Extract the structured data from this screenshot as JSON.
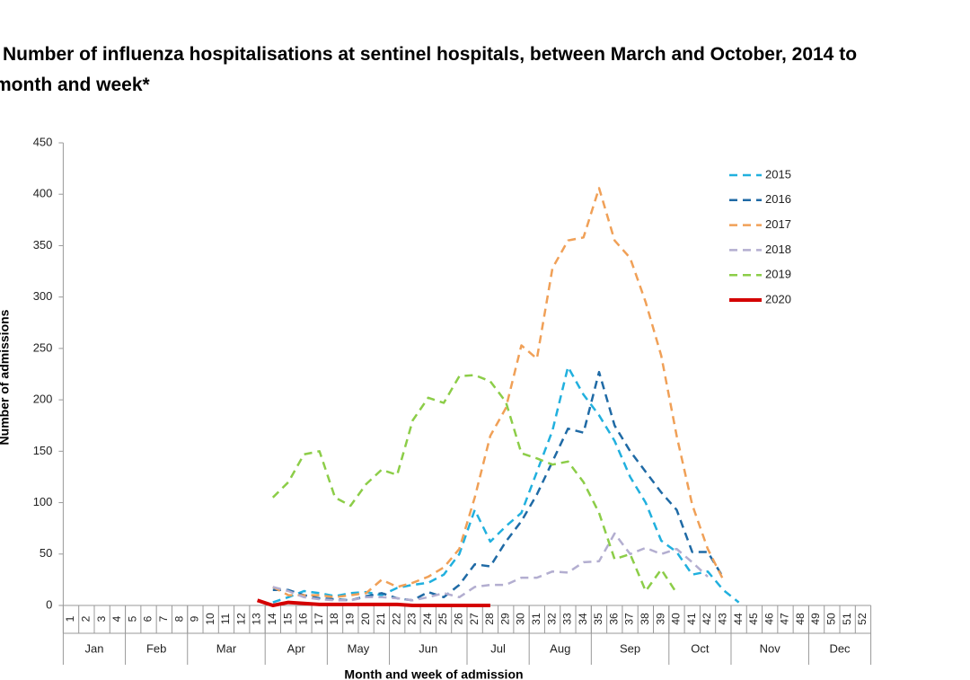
{
  "chart_data": {
    "type": "line",
    "title": "Number of influenza hospitalisations at sentinel hospitals, between March and October, 2014 to",
    "subtitle": "month and week*",
    "y_label": "Number of admissions",
    "x_label": "Month and week of admission",
    "categories": [
      "1",
      "2",
      "3",
      "4",
      "5",
      "6",
      "7",
      "8",
      "9",
      "10",
      "11",
      "12",
      "13",
      "14",
      "15",
      "16",
      "17",
      "18",
      "19",
      "20",
      "21",
      "22",
      "23",
      "24",
      "25",
      "26",
      "27",
      "28",
      "29",
      "30",
      "31",
      "32",
      "33",
      "34",
      "35",
      "36",
      "37",
      "38",
      "39",
      "40",
      "41",
      "42",
      "43",
      "44",
      "45",
      "46",
      "47",
      "48",
      "49",
      "50",
      "51",
      "52"
    ],
    "category_groups": [
      {
        "label": "Jan",
        "span": 4
      },
      {
        "label": "Feb",
        "span": 4
      },
      {
        "label": "Mar",
        "span": 5
      },
      {
        "label": "Apr",
        "span": 4
      },
      {
        "label": "May",
        "span": 4
      },
      {
        "label": "Jun",
        "span": 5
      },
      {
        "label": "Jul",
        "span": 4
      },
      {
        "label": "Aug",
        "span": 4
      },
      {
        "label": "Sep",
        "span": 5
      },
      {
        "label": "Oct",
        "span": 4
      },
      {
        "label": "Nov",
        "span": 5
      },
      {
        "label": "Dec",
        "span": 4
      }
    ],
    "ylim": [
      0,
      450
    ],
    "yticks": [
      0,
      50,
      100,
      150,
      200,
      250,
      300,
      350,
      400,
      450
    ],
    "grid": false,
    "legend": "right",
    "series": [
      {
        "name": "2015",
        "color": "#21b0de",
        "dashed": true,
        "values": [
          null,
          null,
          null,
          null,
          null,
          null,
          null,
          null,
          null,
          null,
          null,
          null,
          null,
          3,
          8,
          14,
          12,
          9,
          12,
          13,
          10,
          17,
          20,
          22,
          30,
          50,
          93,
          62,
          77,
          90,
          130,
          170,
          232,
          205,
          185,
          160,
          125,
          100,
          63,
          52,
          30,
          33,
          15,
          3,
          null,
          null,
          null,
          null,
          null,
          null,
          null,
          null
        ]
      },
      {
        "name": "2016",
        "color": "#1f6aa5",
        "dashed": true,
        "values": [
          null,
          null,
          null,
          null,
          null,
          null,
          null,
          null,
          null,
          null,
          null,
          null,
          null,
          15,
          15,
          10,
          7,
          6,
          5,
          9,
          12,
          7,
          5,
          13,
          8,
          20,
          40,
          38,
          62,
          82,
          108,
          140,
          172,
          168,
          227,
          175,
          150,
          130,
          110,
          93,
          52,
          52,
          27,
          null,
          null,
          null,
          null,
          null,
          null,
          null,
          null,
          null
        ]
      },
      {
        "name": "2017",
        "color": "#f0a057",
        "dashed": true,
        "values": [
          null,
          null,
          null,
          null,
          null,
          null,
          null,
          null,
          null,
          null,
          null,
          null,
          null,
          18,
          10,
          10,
          10,
          8,
          10,
          12,
          25,
          18,
          22,
          28,
          37,
          55,
          105,
          165,
          192,
          253,
          240,
          328,
          355,
          358,
          406,
          355,
          338,
          295,
          243,
          165,
          98,
          55,
          25,
          null,
          null,
          null,
          null,
          null,
          null,
          null,
          null,
          null
        ]
      },
      {
        "name": "2018",
        "color": "#b3aed0",
        "dashed": true,
        "values": [
          null,
          null,
          null,
          null,
          null,
          null,
          null,
          null,
          null,
          null,
          null,
          null,
          null,
          18,
          14,
          8,
          6,
          5,
          5,
          8,
          8,
          7,
          5,
          8,
          12,
          8,
          18,
          20,
          20,
          27,
          27,
          33,
          32,
          42,
          43,
          70,
          50,
          56,
          50,
          55,
          42,
          28,
          null,
          null,
          null,
          null,
          null,
          null,
          null,
          null,
          null,
          null
        ]
      },
      {
        "name": "2019",
        "color": "#8ccd48",
        "dashed": true,
        "values": [
          null,
          null,
          null,
          null,
          null,
          null,
          null,
          null,
          null,
          null,
          null,
          null,
          null,
          105,
          120,
          147,
          150,
          105,
          97,
          118,
          132,
          127,
          180,
          202,
          197,
          223,
          224,
          218,
          198,
          148,
          143,
          137,
          140,
          120,
          90,
          45,
          50,
          14,
          35,
          12,
          null,
          null,
          null,
          null,
          null,
          null,
          null,
          null,
          null,
          null,
          null,
          null
        ]
      },
      {
        "name": "2020",
        "color": "#d40000",
        "dashed": false,
        "values": [
          null,
          null,
          null,
          null,
          null,
          null,
          null,
          null,
          null,
          null,
          null,
          null,
          5,
          0,
          3,
          2,
          1,
          1,
          1,
          1,
          1,
          1,
          0,
          0,
          0,
          0,
          0,
          0,
          null,
          null,
          null,
          null,
          null,
          null,
          null,
          null,
          null,
          null,
          null,
          null,
          null,
          null,
          null,
          null,
          null,
          null,
          null,
          null,
          null,
          null,
          null,
          null
        ]
      }
    ]
  }
}
